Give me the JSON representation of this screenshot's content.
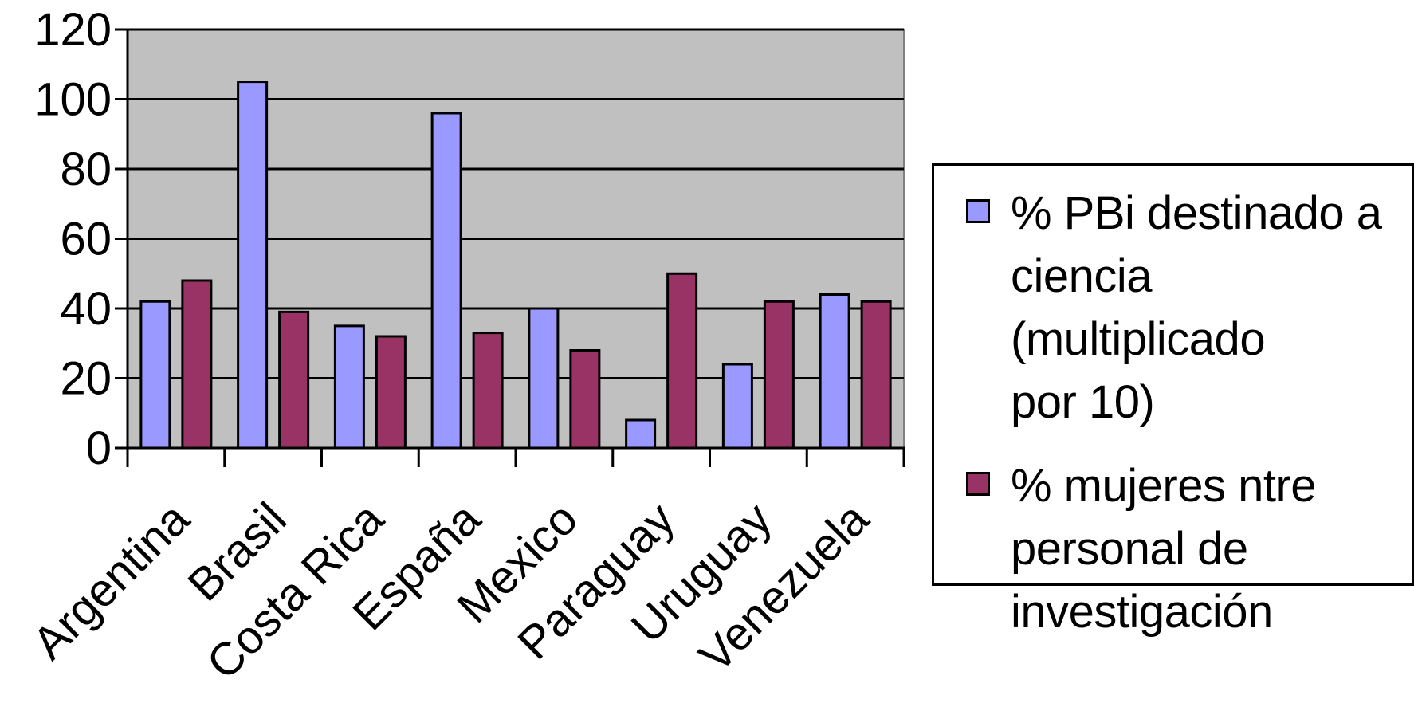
{
  "chart_data": {
    "type": "bar",
    "categories": [
      "Argentina",
      "Brasil",
      "Costa Rica",
      "España",
      "Mexico",
      "Paraguay",
      "Uruguay",
      "Venezuela"
    ],
    "series": [
      {
        "name": "% PBi destinado a ciencia (multiplicado por 10)",
        "values": [
          42,
          105,
          35,
          96,
          40,
          8,
          24,
          44
        ],
        "color": "#9999ff"
      },
      {
        "name": "% mujeres ntre personal de investigación",
        "values": [
          48,
          39,
          32,
          33,
          28,
          50,
          42,
          42
        ],
        "color": "#993366"
      }
    ],
    "ylim": [
      0,
      120
    ],
    "yticks": [
      0,
      20,
      40,
      60,
      80,
      100,
      120
    ],
    "grid": true,
    "plot_background": "#c0c0c0",
    "legend_position": "right"
  },
  "legend": {
    "entries": [
      {
        "label": "% PBi destinado a\nciencia (multiplicado\npor 10)",
        "color": "#9999ff"
      },
      {
        "label": "% mujeres ntre\npersonal de\ninvestigación",
        "color": "#993366"
      }
    ]
  }
}
